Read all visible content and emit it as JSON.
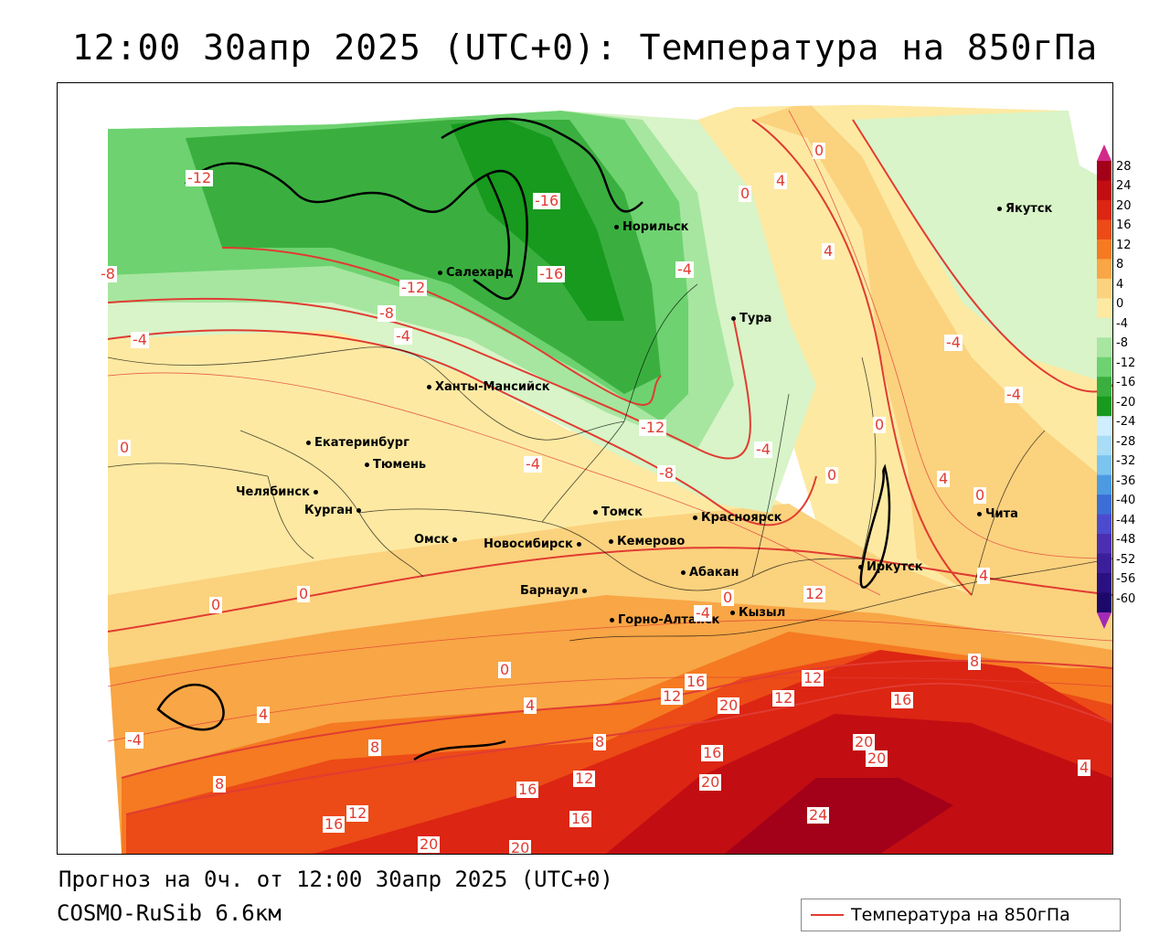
{
  "title": "12:00 30апр 2025 (UTC+0): Температура на 850гПа",
  "footer": {
    "forecast": "Прогноз на 0ч. от 12:00 30апр 2025 (UTC+0)",
    "model": "COSMO-RuSib 6.6км"
  },
  "legend": {
    "label": "Температура на 850гПа",
    "line_color": "#e03c32"
  },
  "colorbar": {
    "labels": [
      "28",
      "24",
      "20",
      "16",
      "12",
      "8",
      "4",
      "0",
      "-4",
      "-8",
      "-12",
      "-16",
      "-20",
      "-24",
      "-28",
      "-32",
      "-36",
      "-40",
      "-44",
      "-48",
      "-52",
      "-56",
      "-60"
    ],
    "colors": [
      "#a3001a",
      "#c20d12",
      "#dc2513",
      "#ec4a17",
      "#f57a22",
      "#f8a646",
      "#fbd27e",
      "#fde9a2",
      "#d8f4c8",
      "#a7e6a0",
      "#6ed270",
      "#3aaf3f",
      "#179a1e",
      "#cfeeff",
      "#a8dcf7",
      "#7bc4ef",
      "#4c9be2",
      "#3c6fd6",
      "#4c4bd0",
      "#4b2fb0",
      "#3a1e9a",
      "#2a1080",
      "#1c0868"
    ],
    "top_arrow_color": "#d22a8a",
    "bottom_arrow_color": "#a32ab5"
  },
  "cities": [
    {
      "name": "Якутск"
    },
    {
      "name": "Норильск"
    },
    {
      "name": "Салехард"
    },
    {
      "name": "Тура"
    },
    {
      "name": "Ханты-Мансийск"
    },
    {
      "name": "Екатеринбург"
    },
    {
      "name": "Тюмень"
    },
    {
      "name": "Челябинск"
    },
    {
      "name": "Курган"
    },
    {
      "name": "Омск"
    },
    {
      "name": "Новосибирск"
    },
    {
      "name": "Томск"
    },
    {
      "name": "Кемерово"
    },
    {
      "name": "Красноярск"
    },
    {
      "name": "Абакан"
    },
    {
      "name": "Барнаул"
    },
    {
      "name": "Горно-Алтайск"
    },
    {
      "name": "Кызыл"
    },
    {
      "name": "Иркутск"
    },
    {
      "name": "Чита"
    }
  ],
  "contour_labels": [
    "-12",
    "-16",
    "-16",
    "-8",
    "-12",
    "-8",
    "-4",
    "-4",
    "-4",
    "-4",
    "-4",
    "-12",
    "-8",
    "-4",
    "0",
    "4",
    "4",
    "0",
    "0",
    "0",
    "0",
    "4",
    "0",
    "4",
    "0",
    "0",
    "0",
    "4",
    "-4",
    "12",
    "16",
    "20",
    "12",
    "12",
    "12",
    "16",
    "8",
    "20",
    "20",
    "16",
    "20",
    "8",
    "4",
    "8",
    "12",
    "16",
    "12",
    "16",
    "16",
    "20",
    "20",
    "24",
    "8",
    "-4",
    "-4",
    "0",
    "4"
  ]
}
